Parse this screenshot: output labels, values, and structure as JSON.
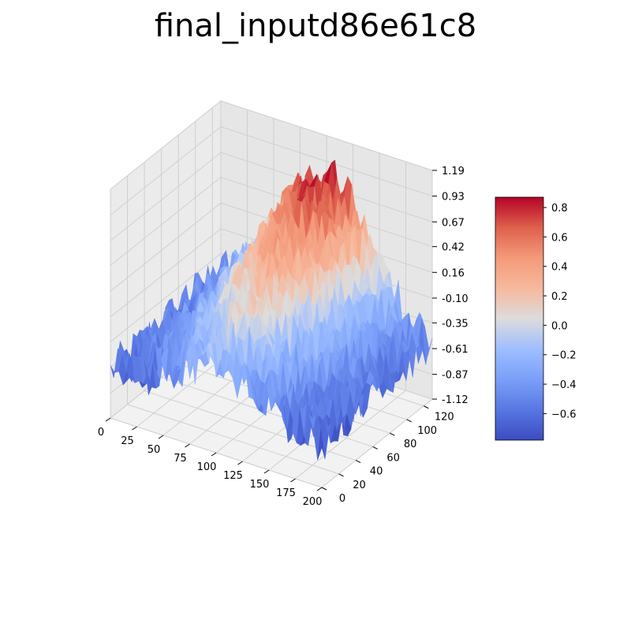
{
  "chart_data": {
    "type": "surface3d",
    "title": "final_inputd86e61c8",
    "colormap": "coolwarm",
    "x_axis": {
      "range": [
        0,
        200
      ],
      "ticks": [
        "0",
        "25",
        "50",
        "75",
        "100",
        "125",
        "150",
        "175",
        "200"
      ]
    },
    "y_axis": {
      "range": [
        0,
        130
      ],
      "ticks": [
        "0",
        "20",
        "40",
        "60",
        "80",
        "100",
        "120"
      ]
    },
    "z_axis": {
      "range": [
        -1.12,
        1.19
      ],
      "ticks": [
        "-1.12",
        "-0.87",
        "-0.61",
        "-0.35",
        "-0.10",
        "0.16",
        "0.42",
        "0.67",
        "0.93",
        "1.19"
      ]
    },
    "colorbar": {
      "range": [
        -0.78,
        0.87
      ],
      "ticks": [
        "−0.6",
        "−0.4",
        "−0.2",
        "0.0",
        "0.2",
        "0.4",
        "0.6",
        "0.8"
      ],
      "tick_values": [
        -0.6,
        -0.4,
        -0.2,
        0.0,
        0.2,
        0.4,
        0.6,
        0.8
      ]
    },
    "surface": {
      "description_points": [
        {
          "x": 0,
          "y": 130,
          "z": -0.5
        },
        {
          "x": 0,
          "y": 0,
          "z": -0.5
        },
        {
          "x": 100,
          "y": 130,
          "z": 0.8
        },
        {
          "x": 100,
          "y": 65,
          "z": 0.3
        },
        {
          "x": 100,
          "y": 0,
          "z": -0.3
        },
        {
          "x": 200,
          "y": 130,
          "z": -0.5
        },
        {
          "x": 200,
          "y": 0,
          "z": -0.7
        }
      ]
    }
  }
}
